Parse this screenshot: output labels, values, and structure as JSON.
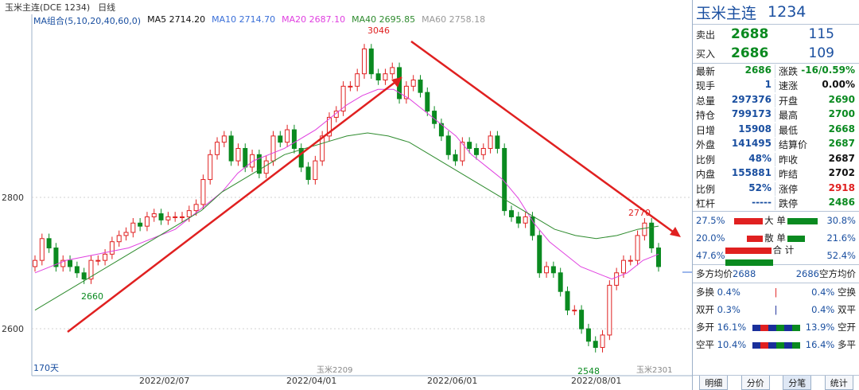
{
  "title_bar": {
    "name": "玉米主连(DCE 1234)",
    "period": "日线"
  },
  "ma_bar": {
    "group": "MA组合(5,10,20,40,60,0)",
    "ma5": "MA5 2714.20",
    "ma10": "MA10 2714.70",
    "ma20": "MA20 2687.10",
    "ma40": "MA40 2695.85",
    "ma60": "MA60 2758.18",
    "colors": {
      "ma5": "#111111",
      "ma10": "#3a6fd8",
      "ma20": "#e040e0",
      "ma40": "#2e8b2e",
      "ma60": "#999999"
    }
  },
  "annotations": {
    "high": "3046",
    "peak2": "2770",
    "low1": "2660",
    "low2": "2548",
    "days": "170天",
    "contract_a": "玉米2209",
    "contract_b": "玉米2301"
  },
  "y_labels": [
    "2800",
    "2600"
  ],
  "x_labels": [
    "2022/02/07",
    "2022/04/01",
    "2022/06/01",
    "2022/08/01"
  ],
  "chart_data": {
    "type": "candlestick",
    "ylim": [
      2530,
      3070
    ],
    "x": [
      "2022/02/07",
      "2022/04/01",
      "2022/06/01",
      "2022/08/01"
    ],
    "close_series": [
      2700,
      2735,
      2720,
      2690,
      2700,
      2690,
      2680,
      2670,
      2700,
      2700,
      2710,
      2730,
      2740,
      2745,
      2760,
      2755,
      2770,
      2775,
      2765,
      2770,
      2770,
      2770,
      2780,
      2790,
      2830,
      2870,
      2890,
      2900,
      2860,
      2880,
      2850,
      2870,
      2840,
      2860,
      2900,
      2890,
      2910,
      2880,
      2850,
      2830,
      2860,
      2900,
      2930,
      2940,
      2980,
      2980,
      3000,
      3040,
      3000,
      2990,
      3000,
      3010,
      2960,
      2980,
      2990,
      2970,
      2940,
      2920,
      2900,
      2870,
      2860,
      2890,
      2880,
      2870,
      2880,
      2900,
      2880,
      2780,
      2770,
      2760,
      2770,
      2740,
      2680,
      2690,
      2680,
      2650,
      2620,
      2620,
      2590,
      2570,
      2560,
      2580,
      2660,
      2680,
      2700,
      2700,
      2740,
      2760,
      2720,
      2690
    ],
    "ma20_series": [
      2680,
      2690,
      2700,
      2705,
      2710,
      2715,
      2720,
      2730,
      2740,
      2750,
      2770,
      2790,
      2810,
      2840,
      2860,
      2870,
      2880,
      2895,
      2910,
      2930,
      2950,
      2965,
      2975,
      2975,
      2960,
      2940,
      2920,
      2900,
      2870,
      2850,
      2830,
      2800,
      2760,
      2730,
      2710,
      2690,
      2680,
      2670,
      2680,
      2700,
      2710
    ],
    "ma60_series": [
      2620,
      2640,
      2660,
      2680,
      2700,
      2720,
      2740,
      2760,
      2780,
      2810,
      2830,
      2850,
      2870,
      2880,
      2890,
      2900,
      2905,
      2900,
      2890,
      2870,
      2850,
      2830,
      2810,
      2790,
      2770,
      2750,
      2740,
      2735,
      2740,
      2750,
      2755
    ]
  },
  "right_panel": {
    "name": "玉米主连",
    "code": "1234",
    "sell": {
      "label": "卖出",
      "price": "2688",
      "vol": "115"
    },
    "buy": {
      "label": "买入",
      "price": "2686",
      "vol": "109"
    },
    "rows": [
      [
        {
          "k": "最新",
          "v": "2686",
          "c": "down"
        },
        {
          "k": "涨跌",
          "v": "-16/0.59%",
          "c": "down"
        }
      ],
      [
        {
          "k": "现手",
          "v": "1",
          "c": "blue"
        },
        {
          "k": "速涨",
          "v": "0.00%",
          "c": "blk"
        }
      ],
      [
        {
          "k": "总量",
          "v": "297376",
          "c": "blue"
        },
        {
          "k": "开盘",
          "v": "2690",
          "c": "down"
        }
      ],
      [
        {
          "k": "持仓",
          "v": "799173",
          "c": "blue"
        },
        {
          "k": "最高",
          "v": "2700",
          "c": "down"
        }
      ],
      [
        {
          "k": "日增",
          "v": "15908",
          "c": "blue"
        },
        {
          "k": "最低",
          "v": "2668",
          "c": "down"
        }
      ],
      [
        {
          "k": "外盘",
          "v": "141495",
          "c": "blue"
        },
        {
          "k": "结算价",
          "v": "2687",
          "c": "down"
        }
      ],
      [
        {
          "k": "比例",
          "v": "48%",
          "c": "blue"
        },
        {
          "k": "昨收",
          "v": "2687",
          "c": "blk"
        }
      ],
      [
        {
          "k": "内盘",
          "v": "155881",
          "c": "blue"
        },
        {
          "k": "昨结",
          "v": "2702",
          "c": "blk"
        }
      ],
      [
        {
          "k": "比例",
          "v": "52%",
          "c": "blue"
        },
        {
          "k": "涨停",
          "v": "2918",
          "c": "up"
        }
      ],
      [
        {
          "k": "杠杆",
          "v": "-----",
          "c": "blue"
        },
        {
          "k": "跌停",
          "v": "2486",
          "c": "down"
        }
      ]
    ],
    "flows": [
      {
        "left": "27.5%",
        "label": "大 单",
        "right": "30.8%"
      },
      {
        "left": "20.0%",
        "label": "散 单",
        "right": "21.6%"
      },
      {
        "left": "47.6%",
        "label": "合 计",
        "right": "52.4%"
      }
    ],
    "avg": {
      "left_label": "多方均价",
      "left_val": "2688",
      "right_val": "2686",
      "right_label": "空方均价"
    },
    "positions": [
      {
        "l": "多换",
        "lv": "0.4%",
        "rv": "0.4%",
        "r": "空换"
      },
      {
        "l": "双开",
        "lv": "0.3%",
        "rv": "0.4%",
        "r": "双平"
      },
      {
        "l": "多开",
        "lv": "16.1%",
        "rv": "13.9%",
        "r": "空开"
      },
      {
        "l": "空平",
        "lv": "10.4%",
        "rv": "16.4%",
        "r": "多平"
      }
    ],
    "tabs": [
      "明细",
      "分价",
      "分笔",
      "统计"
    ]
  }
}
